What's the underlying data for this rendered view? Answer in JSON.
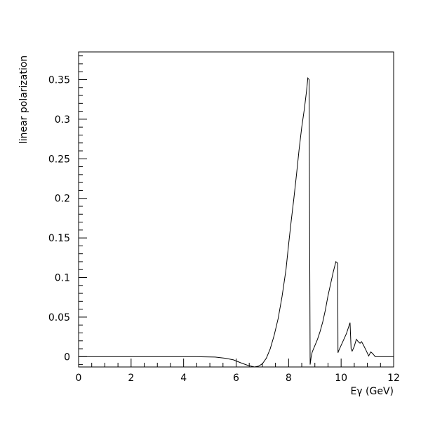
{
  "chart_data": {
    "type": "line",
    "title": "",
    "xlabel": "Eγ (GeV)",
    "ylabel": "linear polarization",
    "xlim": [
      0,
      12
    ],
    "ylim": [
      -0.013,
      0.385
    ],
    "grid": false,
    "x_ticks": [
      0,
      2,
      4,
      6,
      8,
      10,
      12
    ],
    "x_tick_labels": [
      "0",
      "2",
      "4",
      "6",
      "8",
      "10",
      "12"
    ],
    "y_ticks": [
      0,
      0.05,
      0.1,
      0.15,
      0.2,
      0.25,
      0.3,
      0.35
    ],
    "y_tick_labels": [
      "0",
      "0.05",
      "0.1",
      "0.15",
      "0.2",
      "0.25",
      "0.3",
      "0.35"
    ],
    "series": [
      {
        "color": "#000000",
        "x": [
          0,
          4.5,
          5.2,
          5.6,
          5.9,
          6.2,
          6.45,
          6.7,
          6.85,
          7.0,
          7.15,
          7.3,
          7.45,
          7.6,
          7.75,
          7.9,
          8.0,
          8.1,
          8.2,
          8.3,
          8.4,
          8.5,
          8.6,
          8.68,
          8.72,
          8.73,
          8.78,
          8.82,
          8.86,
          8.9,
          9.0,
          9.1,
          9.2,
          9.3,
          9.4,
          9.5,
          9.6,
          9.7,
          9.8,
          9.87,
          9.88,
          9.9,
          10.05,
          10.2,
          10.34,
          10.38,
          10.42,
          10.5,
          10.58,
          10.65,
          10.72,
          10.78,
          10.86,
          10.95,
          11.05,
          11.13,
          11.2,
          11.3,
          11.5,
          12.0
        ],
        "y": [
          0.0,
          0.0,
          -0.0005,
          -0.002,
          -0.004,
          -0.008,
          -0.011,
          -0.013,
          -0.012,
          -0.009,
          -0.002,
          0.01,
          0.027,
          0.048,
          0.076,
          0.11,
          0.142,
          0.172,
          0.2,
          0.23,
          0.262,
          0.29,
          0.313,
          0.335,
          0.348,
          0.352,
          0.35,
          -0.01,
          0.0,
          0.006,
          0.014,
          0.022,
          0.032,
          0.044,
          0.059,
          0.077,
          0.092,
          0.107,
          0.12,
          0.118,
          0.005,
          0.007,
          0.018,
          0.029,
          0.043,
          0.01,
          0.007,
          0.013,
          0.022,
          0.019,
          0.017,
          0.019,
          0.014,
          0.008,
          0.001,
          0.006,
          0.004,
          0.0,
          0.0,
          0.0
        ]
      }
    ]
  }
}
